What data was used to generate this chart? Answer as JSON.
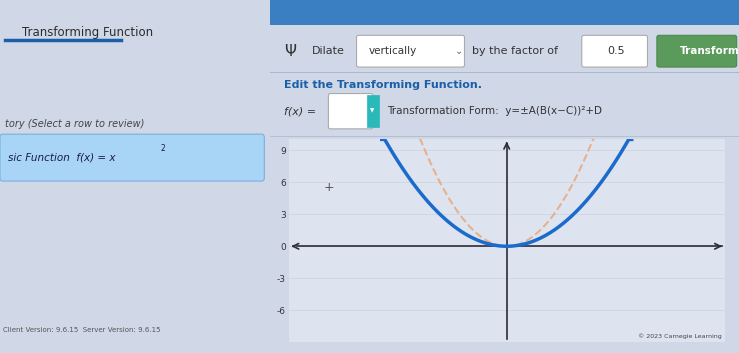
{
  "bg_color": "#d0d8e8",
  "left_panel_bg": "#e8ecf2",
  "grid_color": "#c8cedd",
  "title_text": "Transforming Function",
  "dilate_label": "Dilate",
  "direction_label": "vertically",
  "factor_label": "by the factor of",
  "factor_value": "0.5",
  "transform_btn": "Transform",
  "edit_label": "Edit the Transforming Function.",
  "copyright": "© 2023 Carnegie Learning",
  "version": "Client Version: 9.6.15  Server Version: 9.6.15",
  "ylim": [
    -9,
    10
  ],
  "xlim": [
    -2,
    14
  ],
  "curve_color": "#1a6bcc",
  "dashed_color": "#e8a87c",
  "axis_color": "#2c2c3a",
  "curve_lw": 2.5,
  "dashed_lw": 1.5,
  "x_vertex": 6,
  "A_blue": 0.5,
  "A_dashed": 1.0,
  "header_blue": "#1a5fa8",
  "teal_btn": "#2ab8b8",
  "green_btn": "#5a9a5a"
}
